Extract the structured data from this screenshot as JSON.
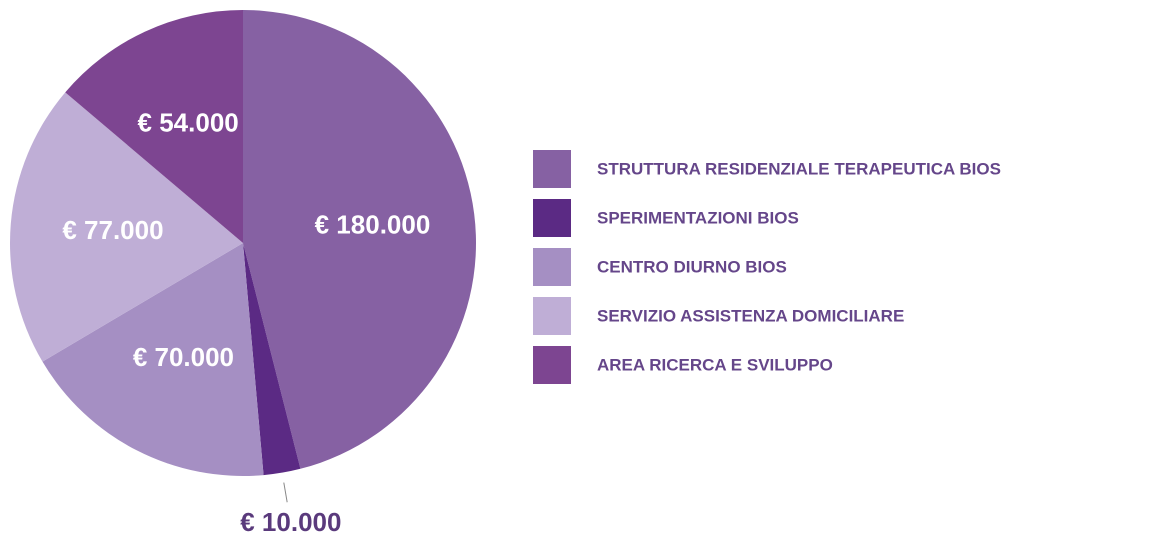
{
  "chart_data": {
    "type": "pie",
    "categories": [
      "STRUTTURA RESIDENZIALE TERAPEUTICA BIOS",
      "SPERIMENTAZIONI BIOS",
      "CENTRO DIURNO BIOS",
      "SERVIZIO ASSISTENZA DOMICILIARE",
      "AREA RICERCA E SVILUPPO"
    ],
    "values": [
      180000,
      10000,
      70000,
      77000,
      54000
    ],
    "value_labels": [
      "€ 180.000",
      "€ 10.000",
      "€ 70.000",
      "€ 77.000",
      "€ 54.000"
    ],
    "colors": [
      "#8661a3",
      "#5b2a84",
      "#a58fc3",
      "#bfaed6",
      "#7d4591"
    ],
    "legend": "right"
  }
}
